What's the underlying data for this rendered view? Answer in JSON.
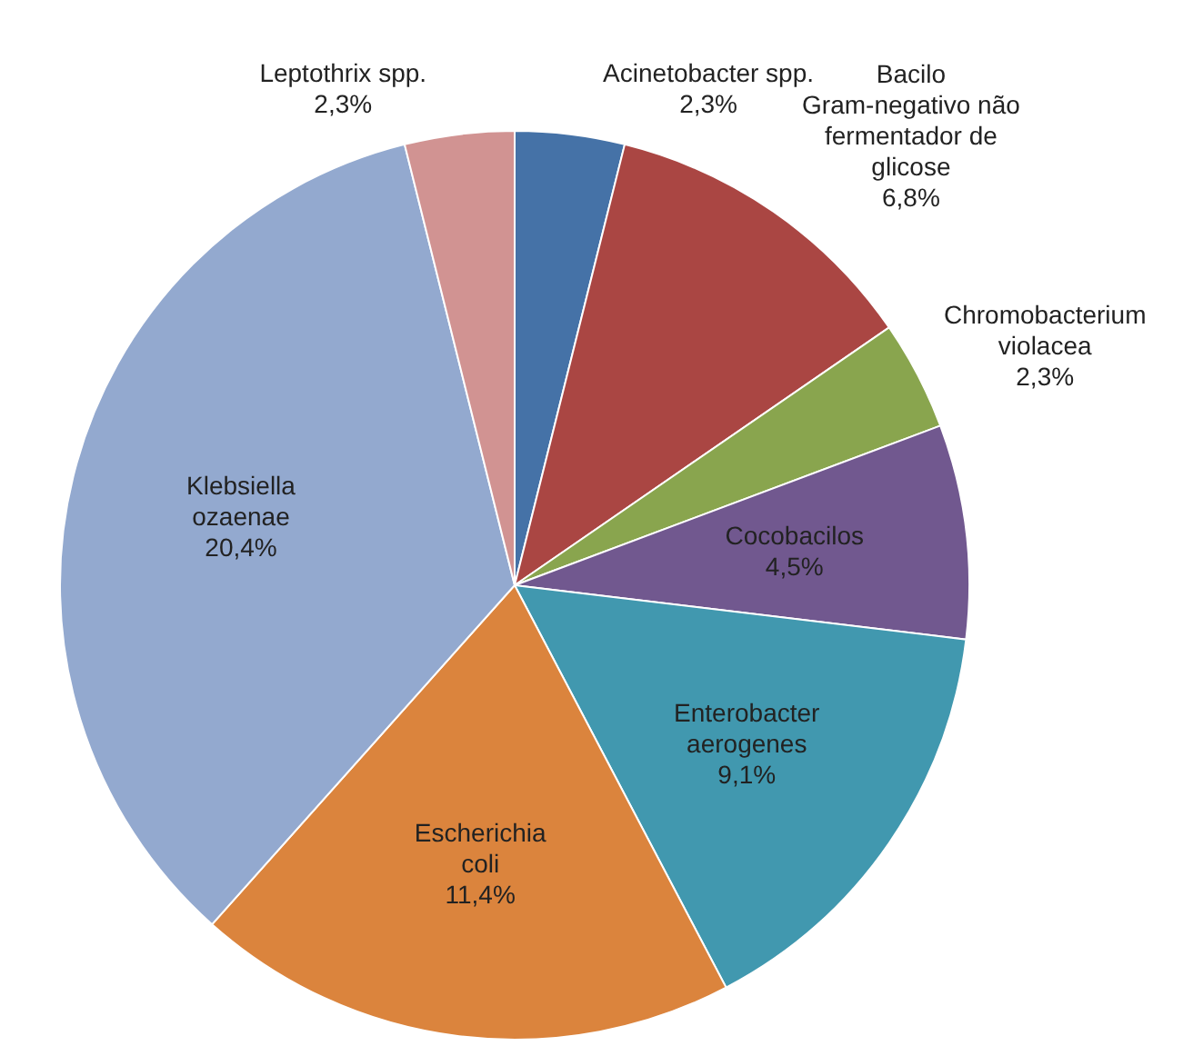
{
  "chart_data": {
    "type": "pie",
    "categories": [
      "Acinetobacter spp.",
      "Bacilo Gram-negativo não fermentador de glicose",
      "Chromobacterium violacea",
      "Cocobacilos",
      "Enterobacter aerogenes",
      "Escherichia coli",
      "Klebsiella ozaenae",
      "Leptothrix spp."
    ],
    "values": [
      2.3,
      6.8,
      2.3,
      4.5,
      9.1,
      11.4,
      20.4,
      2.3
    ],
    "value_labels": [
      "2,3%",
      "6,8%",
      "2,3%",
      "4,5%",
      "9,1%",
      "11,4%",
      "20,4%",
      "2,3%"
    ],
    "colors": [
      "#4572a7",
      "#aa4643",
      "#89a54e",
      "#71588f",
      "#4198af",
      "#db843d",
      "#93a9cf",
      "#d19392"
    ]
  }
}
